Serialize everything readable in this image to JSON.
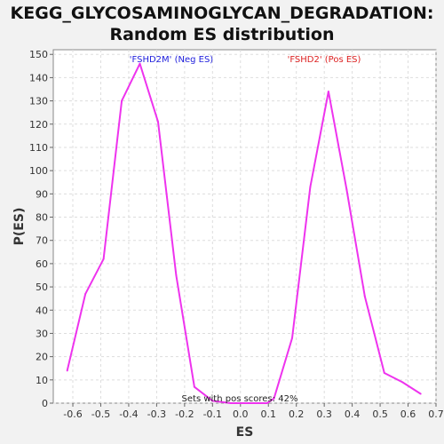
{
  "chart_data": {
    "type": "line",
    "title_lines": [
      "KEGG_GLYCOSAMINOGLYCAN_DEGRADATION:",
      "Random ES distribution"
    ],
    "xlabel": "ES",
    "ylabel": "P(ES)",
    "xlim": [
      -0.67,
      0.7
    ],
    "ylim": [
      0,
      152
    ],
    "xticks": [
      -0.6,
      -0.5,
      -0.4,
      -0.3,
      -0.2,
      -0.1,
      0.0,
      0.1,
      0.2,
      0.3,
      0.4,
      0.5,
      0.6,
      0.7
    ],
    "xtick_labels": [
      "-0.6",
      "-0.5",
      "-0.4",
      "-0.3",
      "-0.2",
      "-0.1",
      "0.0",
      "0.1",
      "0.2",
      "0.3",
      "0.4",
      "0.5",
      "0.6",
      "0.7"
    ],
    "yticks": [
      0,
      10,
      20,
      30,
      40,
      50,
      60,
      70,
      80,
      90,
      100,
      110,
      120,
      130,
      140,
      150
    ],
    "ytick_labels": [
      "0",
      "10",
      "20",
      "30",
      "40",
      "50",
      "60",
      "70",
      "80",
      "90",
      "100",
      "110",
      "120",
      "130",
      "140",
      "150"
    ],
    "grid": true,
    "series": [
      {
        "color": "#ee33ee",
        "x": [
          -0.62,
          -0.555,
          -0.49,
          -0.425,
          -0.36,
          -0.295,
          -0.23,
          -0.165,
          -0.1,
          -0.035,
          0.03,
          0.095,
          0.12,
          0.185,
          0.25,
          0.315,
          0.38,
          0.445,
          0.515,
          0.58,
          0.645
        ],
        "y": [
          14,
          47,
          62,
          130,
          146,
          121,
          55,
          7,
          1,
          0,
          0,
          0,
          2,
          28,
          93,
          134,
          92,
          46,
          13,
          9,
          4
        ]
      }
    ],
    "annotations": [
      {
        "text": "'FSHD2M' (Neg ES)",
        "color": "#2222dd"
      },
      {
        "text": "'FSHD2' (Pos ES)",
        "color": "#dd2222"
      },
      {
        "text": "Sets with pos scores: 42%",
        "color": "#222222"
      }
    ]
  }
}
